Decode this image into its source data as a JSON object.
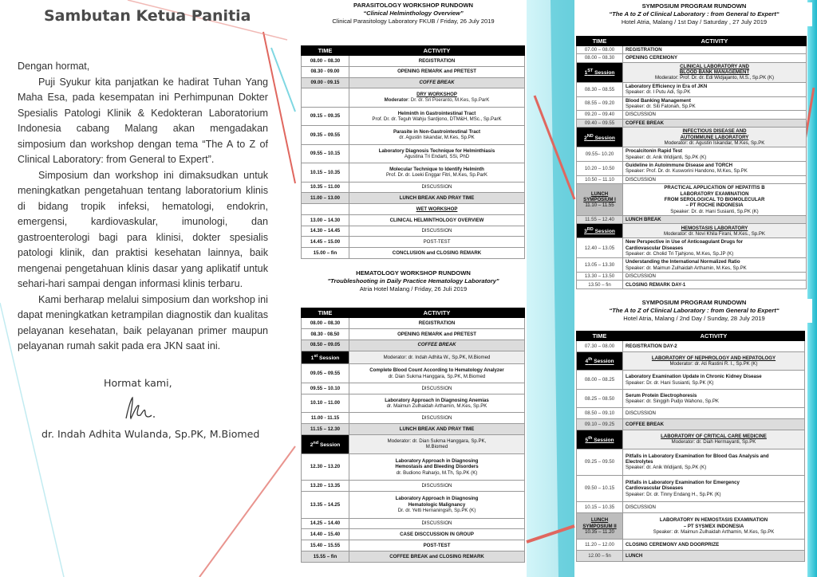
{
  "left": {
    "title": "Sambutan Ketua Panitia",
    "paragraphs": [
      "Dengan hormat,",
      "Puji Syukur kita panjatkan ke hadirat Tuhan Yang Maha Esa, pada kesempatan ini Perhimpunan Dokter Spesialis Patologi Klinik & Kedokteran Laboratorium Indonesia cabang Malang akan mengadakan simposium dan workshop dengan tema “The A to Z of Clinical Laboratory: from General to Expert”.",
      "Simposium dan workshop ini dimaksudkan untuk meningkatkan pengetahuan tentang laboratorium klinis di bidang tropik infeksi, hematologi, endokrin, emergensi, kardiovaskular, imunologi, dan gastroenterologi bagi para klinisi, dokter spesialis patologi klinik, dan praktisi kesehatan lainnya, baik mengenai pengetahuan klinis dasar yang aplikatif untuk sehari-hari sampai dengan informasi klinis terbaru.",
      "Kami berharap melalui simposium dan workshop ini dapat meningkatkan ketrampilan diagnostik dan kualitas pelayanan kesehatan, baik pelayanan primer maupun pelayanan rumah sakit pada era JKN saat ini."
    ],
    "closing": "Hormat kami,",
    "signer": "dr. Indah Adhita Wulanda, Sp.PK, M.Biomed"
  },
  "parasitology": {
    "title": "PARASITOLOGY WORKSHOP RUNDOWN",
    "subtitle": "“Clinical Helminthology Overview”",
    "info": "Clinical Parasitology Laboratory FKUB / Friday, 26 July 2019",
    "headers": [
      "TIME",
      "ACTIVITY"
    ],
    "rows": [
      {
        "t": "08.00 – 08.30",
        "a": [
          {
            "s": "b",
            "t": "REGISTRATION"
          }
        ]
      },
      {
        "t": "08.30 - 09.00",
        "a": [
          {
            "s": "b",
            "t": "OPENING REMARK and PRETEST"
          }
        ]
      },
      {
        "t": "09.00 - 09.15",
        "k": "gray",
        "a": [
          {
            "s": "i",
            "t": "COFFE BREAK"
          }
        ]
      },
      {
        "t": "",
        "a": [
          {
            "s": "u",
            "t": "DRY WORKSHOP"
          },
          {
            "s": "m",
            "label": "Moderator",
            "t": ": Dr. dr. Sri Poeranto, M.Kes, Sp.ParK"
          }
        ]
      },
      {
        "t": "09.15 – 09.35",
        "a": [
          {
            "s": "b",
            "t": "Helminth in Gastrointestinal Tract"
          },
          {
            "s": "n",
            "t": "Prof. Dr. dr. Teguh Wahju Sardjono, DTM&H, MSc., Sp.ParK"
          }
        ]
      },
      {
        "t": "09.35 – 09.55",
        "a": [
          {
            "s": "b",
            "t": "Parasite in Non-Gastrointestinal Tract"
          },
          {
            "s": "n",
            "t": "dr. Agustin Iskandar, M.Kes, Sp.PK"
          }
        ]
      },
      {
        "t": "09.55 – 10.15",
        "a": [
          {
            "s": "b",
            "t": "Laboratory Diagnosis Technique for Helminthiasis"
          },
          {
            "s": "n",
            "t": "Agustina Tri Endarti, SSi, PhD"
          }
        ]
      },
      {
        "t": "10.15 – 10.35",
        "a": [
          {
            "s": "b",
            "t": "Molecular Technique to Identify Helminth"
          },
          {
            "s": "n",
            "t": "Prof. Dr. dr. Loeki Enggar Fitri, M.Kes, Sp.ParK"
          }
        ]
      },
      {
        "t": "10.35 – 11.00",
        "a": [
          {
            "s": "n",
            "t": "DISCUSSION"
          }
        ]
      },
      {
        "t": "11.00 – 13.00",
        "k": "gray",
        "a": [
          {
            "s": "b",
            "t": "LUNCH BREAK AND PRAY TIME"
          }
        ]
      },
      {
        "t": "",
        "a": [
          {
            "s": "u",
            "t": "WET WORKSHOP"
          }
        ]
      },
      {
        "t": "13.00 – 14.30",
        "a": [
          {
            "s": "b",
            "t": "CLINICAL HELMINTHOLOGY OVERVIEW"
          }
        ]
      },
      {
        "t": "14.30 – 14.45",
        "a": [
          {
            "s": "n",
            "t": "DISCUSSION"
          }
        ]
      },
      {
        "t": "14.45 – 15.00",
        "a": [
          {
            "s": "n",
            "t": "POST-TEST"
          }
        ]
      },
      {
        "t": "15.00 – fin",
        "a": [
          {
            "s": "b",
            "t": "CONCLUSION and CLOSING REMARK"
          }
        ]
      }
    ]
  },
  "hematology": {
    "title": "HEMATOLOGY WORKSHOP RUNDOWN",
    "subtitle": "\"Troubleshooting in Daily Practice Hematology Laboratory\"",
    "info": "Atria Hotel Malang / Friday, 26 Juli 2019",
    "headers": [
      "TIME",
      "ACTIVITY"
    ],
    "rows": [
      {
        "t": "08.00 – 08.30",
        "a": [
          {
            "s": "b",
            "t": "REGISTRATION"
          }
        ]
      },
      {
        "t": "08.30 - 08.50",
        "a": [
          {
            "s": "b",
            "t": "OPENING REMARK and PRETEST"
          }
        ]
      },
      {
        "t": "08.50 – 09.05",
        "k": "gray",
        "a": [
          {
            "s": "i",
            "t": "COFFEE BREAK"
          }
        ]
      },
      {
        "k": "session",
        "num": "1",
        "sup": "st",
        "word": " Session",
        "a": [
          {
            "s": "n",
            "t": "Moderator: dr. Indah Adhita W., Sp.PK, M.Biomed"
          }
        ]
      },
      {
        "t": "09.05 – 09.55",
        "a": [
          {
            "s": "b",
            "t": "Complete Blood Count According to Hematology Analyzer"
          },
          {
            "s": "n",
            "t": "dr. Dian Sukma Hanggara, Sp.PK, M.Biomed"
          }
        ]
      },
      {
        "t": "09.55 – 10.10",
        "a": [
          {
            "s": "n",
            "t": "DISCUSSION"
          }
        ]
      },
      {
        "t": "10.10 – 11.00",
        "a": [
          {
            "s": "b",
            "t": "Laboratory Approach in Diagnosing Anemias"
          },
          {
            "s": "n",
            "t": "dr. Maimun Zulhaidah Arthamin, M.Kes, Sp.PK"
          }
        ]
      },
      {
        "t": "11.00 - 11.15",
        "a": [
          {
            "s": "n",
            "t": "DISCUSSION"
          }
        ]
      },
      {
        "t": "11.15 – 12.30",
        "k": "gray",
        "a": [
          {
            "s": "b",
            "t": "LUNCH BREAK AND PRAY TIME"
          }
        ]
      },
      {
        "k": "session",
        "num": "2",
        "sup": "nd",
        "word": " Session",
        "a": [
          {
            "s": "n",
            "t": "Moderator: dr. Dian Sukma Hanggara, Sp.PK,"
          },
          {
            "s": "n",
            "t": "M.Biomed"
          }
        ]
      },
      {
        "t": "12.30 – 13.20",
        "a": [
          {
            "s": "b",
            "t": "Laboratory Approach in Diagnosing"
          },
          {
            "s": "b",
            "t": "Hemostasis and Bleeding Disorders"
          },
          {
            "s": "n",
            "t": "dr. Budiono Raharjo, M.Th, Sp.PK (K)"
          }
        ]
      },
      {
        "t": "13.20 – 13.35",
        "a": [
          {
            "s": "n",
            "t": "DISCUSSION"
          }
        ]
      },
      {
        "t": "13.35 – 14.25",
        "a": [
          {
            "s": "b",
            "t": "Laboratory Approach in Diagnosing"
          },
          {
            "s": "b",
            "t": "Hematologic Malignancy"
          },
          {
            "s": "n",
            "t": "Dr. dr. Yetti Hernaningsih, Sp.PK (K)"
          }
        ]
      },
      {
        "t": "14.25 – 14.40",
        "a": [
          {
            "s": "n",
            "t": "DISCUSSION"
          }
        ]
      },
      {
        "t": "14.40 – 15.40",
        "a": [
          {
            "s": "b",
            "t": "CASE DISCCUSSION IN GROUP"
          }
        ]
      },
      {
        "t": "15.40 – 15.55",
        "a": [
          {
            "s": "b",
            "t": "POST-TEST"
          }
        ]
      },
      {
        "t": "15.55 – fin",
        "k": "gray",
        "a": [
          {
            "s": "b",
            "t": "COFFEE BREAK and CLOSING REMARK"
          }
        ]
      }
    ]
  },
  "day1": {
    "title": "SYMPOSIUM PROGRAM RUNDOWN",
    "subtitle": "“The A to Z of Clinical Laboratory : from General to Expert“",
    "info": "Hotel Atria, Malang / 1st Day / Saturday , 27 July 2019",
    "headers": [
      "TIME",
      "ACTIVITY"
    ],
    "rows": [
      {
        "t": "07.00 – 08.00",
        "a": [
          {
            "s": "b",
            "t": "REGISTRATION"
          }
        ]
      },
      {
        "t": "08.00 – 08.30",
        "a": [
          {
            "s": "b",
            "t": "OPENING CEREMONY"
          }
        ]
      },
      {
        "k": "session",
        "num": "1",
        "sup": "ST",
        "word": " Session",
        "a": [
          {
            "s": "u",
            "t": "CLINICAL LABORATORY AND"
          },
          {
            "s": "u",
            "t": "BLOOD BANK MANAGEMENT"
          },
          {
            "s": "n",
            "t": "Moderator: Prof. Dr. dr. Edi Widjajanto, M.S., Sp.PK (K)"
          }
        ]
      },
      {
        "t": "08.30 – 08.55",
        "a": [
          {
            "s": "b",
            "t": "Laboratory Efficiency in Era of JKN"
          },
          {
            "s": "n",
            "t": "Speaker: dr. I Putu Adi, Sp.PK"
          }
        ]
      },
      {
        "t": "08.55 – 09.20",
        "a": [
          {
            "s": "b",
            "t": "Blood Banking Management"
          },
          {
            "s": "n",
            "t": "Speaker: dr. Siti Fatonah, Sp.PK"
          }
        ]
      },
      {
        "t": "09.20 – 09.40",
        "a": [
          {
            "s": "n",
            "t": "DISCUSSION"
          }
        ]
      },
      {
        "t": "09.40 – 09.55",
        "k": "gray",
        "a": [
          {
            "s": "b",
            "t": "COFFEE BREAK"
          }
        ]
      },
      {
        "k": "session",
        "num": "2",
        "sup": "ND",
        "word": " Session",
        "a": [
          {
            "s": "u",
            "t": "INFECTIOUS DISEASE AND"
          },
          {
            "s": "u",
            "t": "AUTOIMMUNE LABORATORY"
          },
          {
            "s": "n",
            "t": "Moderator: dr. Agustin Iskandar, M.Kes, Sp.PK"
          }
        ]
      },
      {
        "t": "09.55– 10.20",
        "a": [
          {
            "s": "b",
            "t": "Procalcitonin Rapid Test"
          },
          {
            "s": "n",
            "t": "Speaker: dr. Anik Widijanti, Sp.PK (K)"
          }
        ]
      },
      {
        "t": "10.20 – 10.50",
        "a": [
          {
            "s": "b",
            "t": "Guideline in Autoimmune Disease and TORCH"
          },
          {
            "s": "n",
            "t": "Speaker: Prof. Dr. dr. Kusworini Handono, M.Kes, Sp.PK"
          }
        ]
      },
      {
        "t": "10.50 – 11.10",
        "a": [
          {
            "s": "n",
            "t": "DISCUSSION"
          }
        ]
      },
      {
        "k": "lunch",
        "lunch": [
          "LUNCH",
          "SYMPOSIUM I"
        ],
        "lt": "11.10 – 11.55",
        "a": [
          {
            "s": "b",
            "t": "PRACTICAL APPLICATION OF HEPATITIS B"
          },
          {
            "s": "b",
            "t": "LABORATORY EXAMINATION"
          },
          {
            "s": "b",
            "t": "FROM SEROLOGICAL TO BIOMOLECULAR"
          },
          {
            "s": "b",
            "t": "– PT ROCHE INDONESIA"
          },
          {
            "s": "n",
            "t": "Speaker: Dr. dr. Hani Susianti, Sp.PK (K)"
          }
        ]
      },
      {
        "t": "11.55 – 12.40",
        "k": "gray",
        "a": [
          {
            "s": "b",
            "t": "LUNCH BREAK"
          }
        ]
      },
      {
        "k": "session",
        "num": "3",
        "sup": "RD",
        "word": " Session",
        "a": [
          {
            "s": "u",
            "t": "HEMOSTASIS LABORATORY"
          },
          {
            "s": "n",
            "t": "Moderator: dr. Novi Khila Firani, M.Kes., Sp.PK"
          }
        ]
      },
      {
        "t": "12.40 – 13.05",
        "a": [
          {
            "s": "b",
            "t": "New Perspective in Use of Anticoagulant Drugs for"
          },
          {
            "s": "b",
            "t": "Cardiovascular Diseases"
          },
          {
            "s": "n",
            "t": "Speaker: dr. Cholid Tri Tjahjono, M.Kes, Sp.JP (K)"
          }
        ]
      },
      {
        "t": "13.05 – 13.30",
        "a": [
          {
            "s": "b",
            "t": "Understanding the International Normalized Ratio"
          },
          {
            "s": "n",
            "t": "Speaker: dr. Maimun Zulhaidah Arthamin, M.Kes, Sp.PK"
          }
        ]
      },
      {
        "t": "13.30 – 13.50",
        "a": [
          {
            "s": "n",
            "t": "DISCUSSION"
          }
        ]
      },
      {
        "t": "13.50 – fin",
        "a": [
          {
            "s": "b",
            "t": "CLOSING REMARK DAY-1"
          }
        ]
      }
    ]
  },
  "day2": {
    "title": "SYMPOSIUM PROGRAM RUNDOWN",
    "subtitle": "“The A to Z of Clinical Laboratory : from General to Expert“",
    "info": "Hotel Atria, Malang / 2nd Day / Sunday, 28 July 2019",
    "headers": [
      "TIME",
      "ACTIVITY"
    ],
    "rows": [
      {
        "t": "07.30 – 08.00",
        "a": [
          {
            "s": "b",
            "t": "REGISTRATION DAY-2"
          }
        ]
      },
      {
        "k": "session",
        "num": "4",
        "sup": "th",
        "word": " Session",
        "a": [
          {
            "s": "u",
            "t": "LABORATORY OF NEPHROLOGY AND HEPATOLOGY"
          },
          {
            "s": "n",
            "t": "Moderator: dr. Ati Rastini R. I., Sp.PK (K)"
          }
        ]
      },
      {
        "t": "08.00 – 08.25",
        "a": [
          {
            "s": "b",
            "t": "Laboratory Examination Update in Chronic Kidney Disease"
          },
          {
            "s": "n",
            "t": "Speaker: Dr. dr. Hani Susianti, Sp.PK (K)"
          }
        ]
      },
      {
        "t": "08.25 – 08.50",
        "a": [
          {
            "s": "b",
            "t": "Serum Protein Electrophoresis"
          },
          {
            "s": "n",
            "t": "Speaker: dr. Singgih Pudjo Wahono, Sp.PK"
          }
        ]
      },
      {
        "t": "08.50 – 09.10",
        "a": [
          {
            "s": "n",
            "t": "DISCUSSION"
          }
        ]
      },
      {
        "t": "09.10 – 09.25",
        "k": "gray",
        "a": [
          {
            "s": "b",
            "t": "COFFEE BREAK"
          }
        ]
      },
      {
        "k": "session",
        "num": "5",
        "sup": "th",
        "word": " Session",
        "a": [
          {
            "s": "u",
            "t": "LABORATORY OF CRITICAL CARE MEDICINE"
          },
          {
            "s": "n",
            "t": "Moderator: dr. Diah Hermayanti, Sp.PK"
          }
        ]
      },
      {
        "t": "09.25 – 09.50",
        "a": [
          {
            "s": "b",
            "t": "Pitfalls in Laboratory Examination for Blood Gas Analysis and"
          },
          {
            "s": "b",
            "t": "Electrolytes"
          },
          {
            "s": "n",
            "t": "Speaker: dr. Anik Widijanti, Sp.PK (K)"
          }
        ]
      },
      {
        "t": "09.50 – 10.15",
        "a": [
          {
            "s": "b",
            "t": "Pitfalls in Laboratory Examination for Emergency"
          },
          {
            "s": "b",
            "t": "Cardiovascular Diseases"
          },
          {
            "s": "n",
            "t": "Speaker: Dr. dr. Tinny Endang H., Sp.PK (K)"
          }
        ]
      },
      {
        "t": "10.15 – 10.35",
        "a": [
          {
            "s": "n",
            "t": "DISCUSSION"
          }
        ]
      },
      {
        "k": "lunch",
        "lunch": [
          "LUNCH",
          "SYMPOSIUM II"
        ],
        "lt": "10.35 – 11.20",
        "a": [
          {
            "s": "b",
            "t": "LABORATORY IN HEMOSTASIS EXAMINATION"
          },
          {
            "s": "b",
            "t": "– PT SYSMEX INDONESIA"
          },
          {
            "s": "n",
            "t": "Speaker: dr. Maimun Zulhaidah Arthamin, M.Kes, Sp.PK"
          }
        ]
      },
      {
        "t": "11.20 – 12.00",
        "a": [
          {
            "s": "b",
            "t": "CLOSING CEREMONY AND DOORPRIZE"
          }
        ]
      },
      {
        "t": "12.00 – fin",
        "k": "gray",
        "a": [
          {
            "s": "b",
            "t": "LUNCH"
          }
        ]
      }
    ]
  },
  "colors": {
    "accent_blue": "#2ec4d6",
    "accent_red": "#e0675f",
    "header_bg": "#000000",
    "row_gray": "#dcdcdc"
  }
}
